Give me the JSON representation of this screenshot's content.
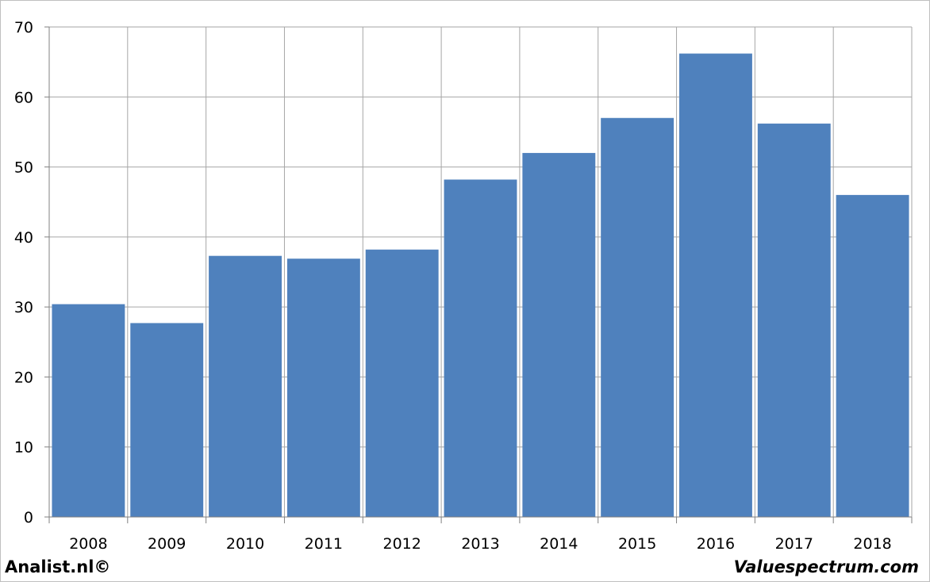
{
  "chart_data": {
    "type": "bar",
    "categories": [
      "2008",
      "2009",
      "2010",
      "2011",
      "2012",
      "2013",
      "2014",
      "2015",
      "2016",
      "2017",
      "2018"
    ],
    "values": [
      30.4,
      27.7,
      37.3,
      36.9,
      38.2,
      48.2,
      52.0,
      57.0,
      66.2,
      56.2,
      46.0
    ],
    "title": "",
    "xlabel": "",
    "ylabel": "",
    "ylim": [
      0,
      70
    ],
    "yticks": [
      0,
      10,
      20,
      30,
      40,
      50,
      60,
      70
    ],
    "grid": true,
    "bar_color": "#4f81bd",
    "grid_color": "#a6a6a6"
  },
  "footer": {
    "left": "Analist.nl©",
    "right": "Valuespectrum.com"
  }
}
